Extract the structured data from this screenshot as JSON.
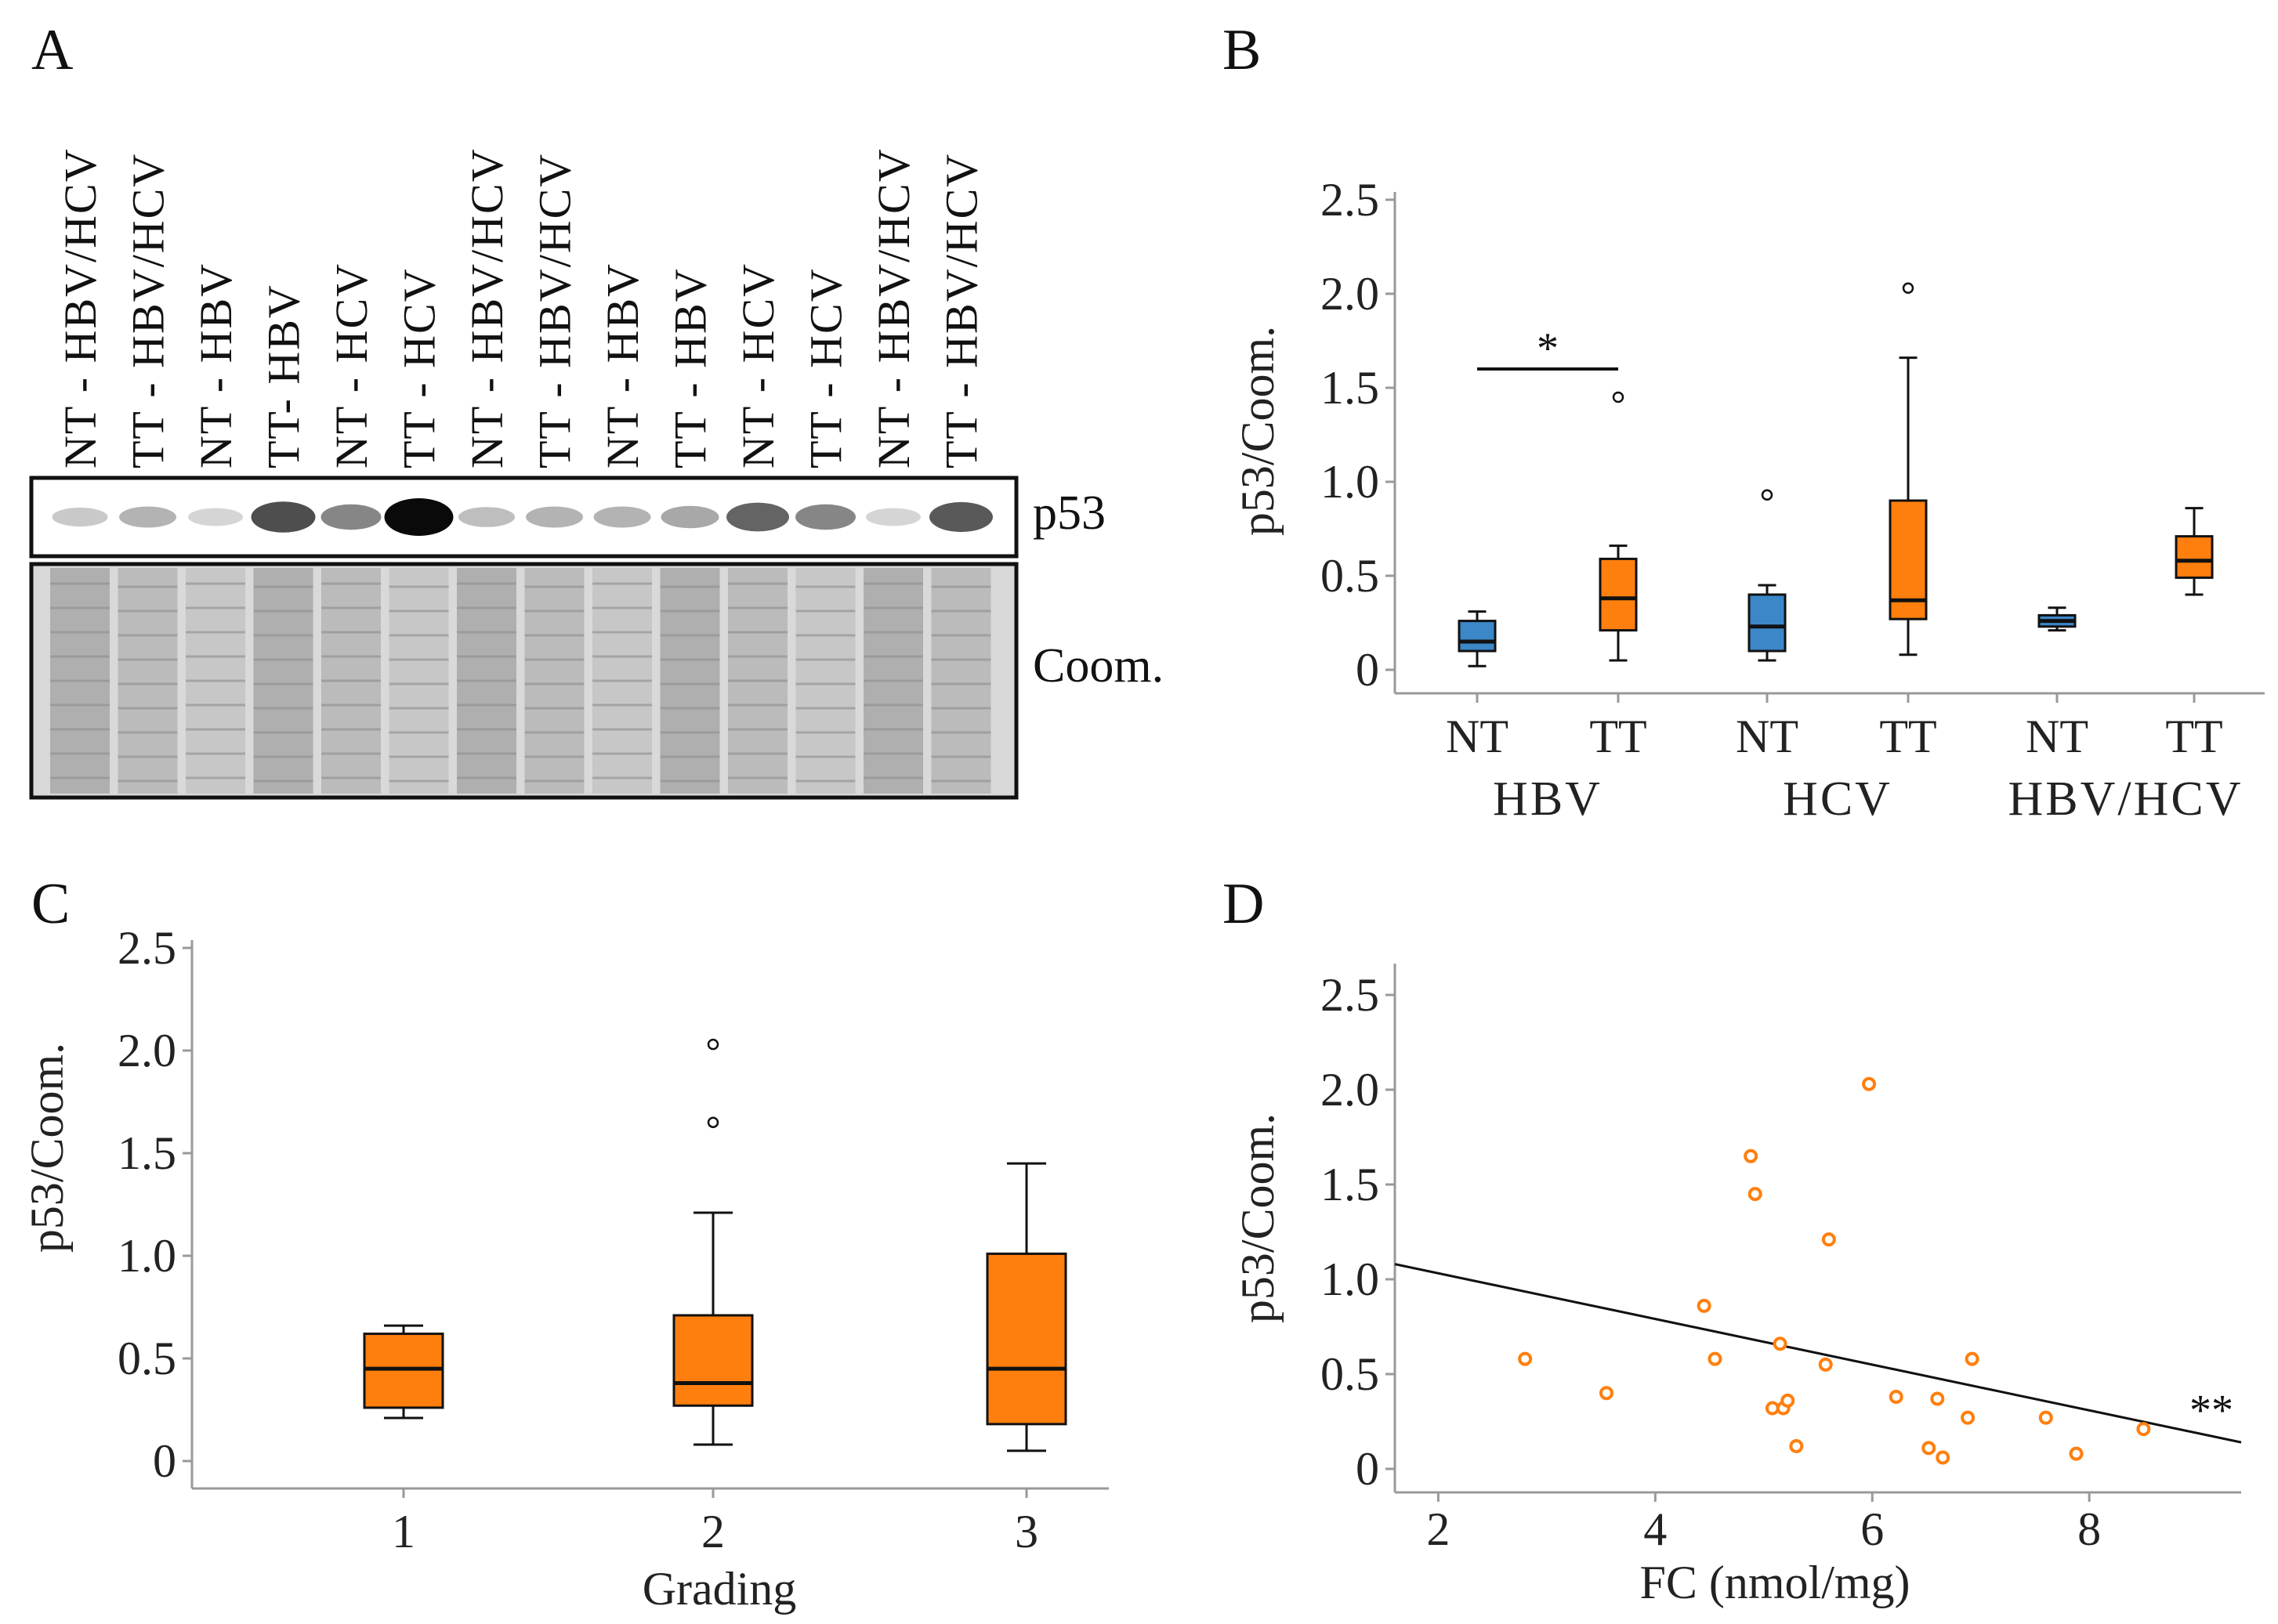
{
  "panels": {
    "A": {
      "letter": "A",
      "lanes": [
        "NT - HBV/HCV",
        "TT - HBV/HCV",
        "NT - HBV",
        "TT- HBV",
        "NT - HCV",
        "TT - HCV",
        "NT - HBV/HCV",
        "TT - HBV/HCV",
        "NT - HBV",
        "TT - HBV",
        "NT - HCV",
        "TT - HCV",
        "NT - HBV/HCV",
        "TT - HBV/HCV"
      ],
      "p53_intensity": [
        0.15,
        0.25,
        0.1,
        0.7,
        0.45,
        1.0,
        0.2,
        0.25,
        0.25,
        0.3,
        0.6,
        0.45,
        0.1,
        0.65
      ],
      "blot_labels": {
        "p53": "p53",
        "coom": "Coom."
      }
    },
    "B": {
      "letter": "B"
    },
    "C": {
      "letter": "C"
    },
    "D": {
      "letter": "D"
    }
  },
  "chart_data": [
    {
      "id": "B",
      "type": "box",
      "ylabel": "p53/Coom.",
      "ylim": [
        0,
        2.5
      ],
      "yticks": [
        "0",
        "0.5",
        "1.0",
        "1.5",
        "2.0",
        "2.5"
      ],
      "categories": [
        "NT",
        "TT",
        "NT",
        "TT",
        "NT",
        "TT"
      ],
      "groups": [
        "HBV",
        "HCV",
        "HBV/HCV"
      ],
      "boxes": [
        {
          "label": "NT",
          "group": "HBV",
          "color": "#3b87c8",
          "whisker_low": 0.02,
          "q1": 0.1,
          "median": 0.15,
          "q3": 0.26,
          "whisker_high": 0.31,
          "outliers": []
        },
        {
          "label": "TT",
          "group": "HBV",
          "color": "#ff7f0e",
          "whisker_low": 0.05,
          "q1": 0.21,
          "median": 0.38,
          "q3": 0.59,
          "whisker_high": 0.66,
          "outliers": [
            1.45
          ]
        },
        {
          "label": "NT",
          "group": "HCV",
          "color": "#3b87c8",
          "whisker_low": 0.05,
          "q1": 0.1,
          "median": 0.23,
          "q3": 0.4,
          "whisker_high": 0.45,
          "outliers": [
            0.93
          ]
        },
        {
          "label": "TT",
          "group": "HCV",
          "color": "#ff7f0e",
          "whisker_low": 0.08,
          "q1": 0.27,
          "median": 0.37,
          "q3": 0.9,
          "whisker_high": 1.66,
          "outliers": [
            2.03
          ]
        },
        {
          "label": "NT",
          "group": "HBV/HCV",
          "color": "#3b87c8",
          "whisker_low": 0.21,
          "q1": 0.23,
          "median": 0.26,
          "q3": 0.29,
          "whisker_high": 0.33,
          "outliers": []
        },
        {
          "label": "TT",
          "group": "HBV/HCV",
          "color": "#ff7f0e",
          "whisker_low": 0.4,
          "q1": 0.49,
          "median": 0.58,
          "q3": 0.71,
          "whisker_high": 0.86,
          "outliers": []
        }
      ],
      "significance": {
        "between": [
          0,
          1
        ],
        "label": "*",
        "y": 1.6
      }
    },
    {
      "id": "C",
      "type": "box",
      "xlabel": "Grading",
      "ylabel": "p53/Coom.",
      "ylim": [
        0,
        2.5
      ],
      "yticks": [
        "0",
        "0.5",
        "1.0",
        "1.5",
        "2.0",
        "2.5"
      ],
      "categories": [
        "1",
        "2",
        "3"
      ],
      "boxes": [
        {
          "label": "1",
          "color": "#ff7f0e",
          "whisker_low": 0.21,
          "q1": 0.26,
          "median": 0.45,
          "q3": 0.62,
          "whisker_high": 0.66,
          "outliers": []
        },
        {
          "label": "2",
          "color": "#ff7f0e",
          "whisker_low": 0.08,
          "q1": 0.27,
          "median": 0.38,
          "q3": 0.71,
          "whisker_high": 1.21,
          "outliers": [
            1.65,
            2.03
          ]
        },
        {
          "label": "3",
          "color": "#ff7f0e",
          "whisker_low": 0.05,
          "q1": 0.18,
          "median": 0.45,
          "q3": 1.01,
          "whisker_high": 1.45,
          "outliers": []
        }
      ]
    },
    {
      "id": "D",
      "type": "scatter",
      "xlabel": "FC (nmol/mg)",
      "ylabel": "p53/Coom.",
      "xlim": [
        1.6,
        9.4
      ],
      "ylim": [
        0,
        2.5
      ],
      "xticks": [
        2,
        4,
        6,
        8
      ],
      "yticks": [
        "0",
        "0.5",
        "1.0",
        "1.5",
        "2.0",
        "2.5"
      ],
      "points": [
        [
          2.8,
          0.58
        ],
        [
          3.55,
          0.4
        ],
        [
          4.45,
          0.86
        ],
        [
          4.55,
          0.58
        ],
        [
          4.88,
          1.65
        ],
        [
          4.92,
          1.45
        ],
        [
          5.08,
          0.32
        ],
        [
          5.15,
          0.66
        ],
        [
          5.18,
          0.32
        ],
        [
          5.22,
          0.36
        ],
        [
          5.3,
          0.12
        ],
        [
          5.57,
          0.55
        ],
        [
          5.6,
          1.21
        ],
        [
          5.97,
          2.03
        ],
        [
          6.22,
          0.38
        ],
        [
          6.52,
          0.11
        ],
        [
          6.6,
          0.37
        ],
        [
          6.65,
          0.06
        ],
        [
          6.88,
          0.27
        ],
        [
          6.92,
          0.58
        ],
        [
          7.6,
          0.27
        ],
        [
          7.88,
          0.08
        ],
        [
          8.5,
          0.21
        ]
      ],
      "point_color": "#ff7f0e",
      "fit_line": {
        "x": [
          1.6,
          9.4
        ],
        "y": [
          1.08,
          0.14
        ]
      },
      "significance": "**"
    }
  ]
}
